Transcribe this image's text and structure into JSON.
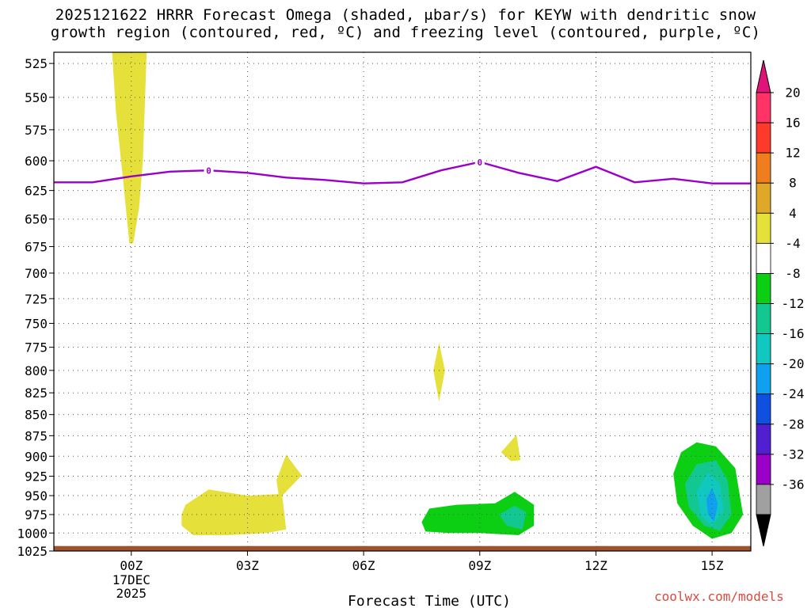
{
  "title": {
    "line1": "2025121622 HRRR Forecast Omega (shaded, μbar/s) for KEYW with dendritic snow",
    "line2": "growth region (contoured, red, ºC) and freezing level (contoured, purple, ºC)"
  },
  "credit": "coolwx.com/models",
  "chart_data": {
    "type": "heatmap",
    "title": "2025121622 HRRR Forecast Omega (shaded, μbar/s) for KEYW with dendritic snow growth region (contoured, red, ºC) and freezing level (contoured, purple, ºC)",
    "xlabel": "Forecast Time (UTC)",
    "ylabel": "",
    "x_ticks": [
      {
        "hour": 0,
        "label": "00Z",
        "sub": [
          "17DEC",
          "2025"
        ]
      },
      {
        "hour": 3,
        "label": "03Z",
        "sub": []
      },
      {
        "hour": 6,
        "label": "06Z",
        "sub": []
      },
      {
        "hour": 9,
        "label": "09Z",
        "sub": []
      },
      {
        "hour": 12,
        "label": "12Z",
        "sub": []
      },
      {
        "hour": 15,
        "label": "15Z",
        "sub": []
      }
    ],
    "xlim_hours": [
      -2,
      16
    ],
    "y_ticks": [
      525,
      550,
      575,
      600,
      625,
      650,
      675,
      700,
      725,
      750,
      775,
      800,
      825,
      850,
      875,
      900,
      925,
      950,
      975,
      1000,
      1025
    ],
    "ylim_hpa": [
      1025,
      517
    ],
    "y_scale": "log-pressure",
    "grid": true,
    "freezing_level": {
      "color": "#9a00c8",
      "contour_label": "0",
      "points": [
        [
          -2,
          618
        ],
        [
          -1,
          618
        ],
        [
          0,
          613
        ],
        [
          1,
          609
        ],
        [
          2,
          608
        ],
        [
          3,
          610
        ],
        [
          4,
          614
        ],
        [
          5,
          616
        ],
        [
          6,
          619
        ],
        [
          7,
          618
        ],
        [
          8,
          608
        ],
        [
          9,
          601
        ],
        [
          10,
          610
        ],
        [
          11,
          617
        ],
        [
          12,
          605
        ],
        [
          13,
          618
        ],
        [
          14,
          615
        ],
        [
          15,
          619
        ],
        [
          16,
          619
        ]
      ],
      "labels_at_hours": [
        2,
        9
      ]
    },
    "omega_regions": [
      {
        "name": "upward/downward +4 area",
        "fill": "#e6e03a",
        "points": [
          [
            -0.5,
            515
          ],
          [
            0.4,
            515
          ],
          [
            0.3,
            600
          ],
          [
            0.2,
            640
          ],
          [
            0.05,
            672
          ],
          [
            -0.05,
            672
          ],
          [
            -0.2,
            620
          ],
          [
            -0.4,
            560
          ]
        ]
      },
      {
        "name": "+4 blob 08Z",
        "fill": "#e6e03a",
        "points": [
          [
            7.95,
            770
          ],
          [
            8.1,
            800
          ],
          [
            7.95,
            835
          ],
          [
            7.8,
            800
          ]
        ]
      },
      {
        "name": "+4 blob 10Z",
        "fill": "#e6e03a",
        "points": [
          [
            9.55,
            895
          ],
          [
            9.95,
            874
          ],
          [
            10.05,
            905
          ],
          [
            9.8,
            906
          ]
        ]
      },
      {
        "name": "+4 blob 01-04Z",
        "fill": "#e6e03a",
        "points": [
          [
            1.3,
            975
          ],
          [
            1.4,
            962
          ],
          [
            2.0,
            942
          ],
          [
            3.0,
            950
          ],
          [
            3.8,
            948
          ],
          [
            3.75,
            930
          ],
          [
            4.0,
            898
          ],
          [
            4.4,
            924
          ],
          [
            3.9,
            950
          ],
          [
            4.0,
            995
          ],
          [
            3.5,
            1000
          ],
          [
            2.5,
            1003
          ],
          [
            1.6,
            1003
          ],
          [
            1.3,
            990
          ]
        ]
      },
      {
        "name": "-4 area 08-10Z",
        "fill": "#0ccf14",
        "points": [
          [
            7.5,
            985
          ],
          [
            7.7,
            967
          ],
          [
            8.4,
            962
          ],
          [
            9.4,
            960
          ],
          [
            9.9,
            945
          ],
          [
            10.4,
            962
          ],
          [
            10.4,
            990
          ],
          [
            10.0,
            1003
          ],
          [
            9.0,
            1000
          ],
          [
            8.2,
            1000
          ],
          [
            7.6,
            998
          ]
        ]
      },
      {
        "name": "-8 area 10Z",
        "fill": "#12c890",
        "points": [
          [
            9.5,
            975
          ],
          [
            9.9,
            963
          ],
          [
            10.2,
            972
          ],
          [
            10.1,
            995
          ],
          [
            9.7,
            990
          ]
        ]
      },
      {
        "name": "-4 area 15Z",
        "fill": "#0ccf14",
        "points": [
          [
            14.0,
            922
          ],
          [
            14.2,
            895
          ],
          [
            14.6,
            883
          ],
          [
            15.1,
            888
          ],
          [
            15.6,
            915
          ],
          [
            15.8,
            975
          ],
          [
            15.5,
            1000
          ],
          [
            15.0,
            1008
          ],
          [
            14.5,
            990
          ],
          [
            14.1,
            960
          ]
        ]
      },
      {
        "name": "-8 area 15Z",
        "fill": "#12c890",
        "points": [
          [
            14.3,
            935
          ],
          [
            14.6,
            910
          ],
          [
            15.1,
            905
          ],
          [
            15.4,
            930
          ],
          [
            15.5,
            975
          ],
          [
            15.2,
            997
          ],
          [
            14.8,
            990
          ],
          [
            14.4,
            965
          ]
        ]
      },
      {
        "name": "-12 area 15Z",
        "fill": "#10c8c0",
        "points": [
          [
            14.6,
            945
          ],
          [
            14.9,
            920
          ],
          [
            15.2,
            935
          ],
          [
            15.3,
            970
          ],
          [
            15.0,
            990
          ],
          [
            14.7,
            975
          ]
        ]
      },
      {
        "name": "-16 area 15Z",
        "fill": "#10a0f0",
        "points": [
          [
            14.85,
            955
          ],
          [
            15.0,
            940
          ],
          [
            15.15,
            960
          ],
          [
            15.05,
            985
          ],
          [
            14.9,
            975
          ]
        ]
      }
    ],
    "surface_band": {
      "fill": "#a0522d",
      "top_hpa": 1018,
      "bottom_hpa": 1025
    },
    "colorbar": {
      "labels": [
        "20",
        "16",
        "12",
        "8",
        "4",
        "-4",
        "-8",
        "-12",
        "-16",
        "-20",
        "-24",
        "-28",
        "-32",
        "-36"
      ],
      "colors": [
        "#ff3366",
        "#ff3a2a",
        "#f07d1e",
        "#e0a828",
        "#e6e03a",
        "#ffffff",
        "#0ccf14",
        "#12c890",
        "#10c8c0",
        "#10a0f0",
        "#1050e0",
        "#5020d0",
        "#9a00c8",
        "#a0a0a0"
      ],
      "top_arrow_color": "#e0137a",
      "bottom_arrow_color": "#000000"
    }
  }
}
